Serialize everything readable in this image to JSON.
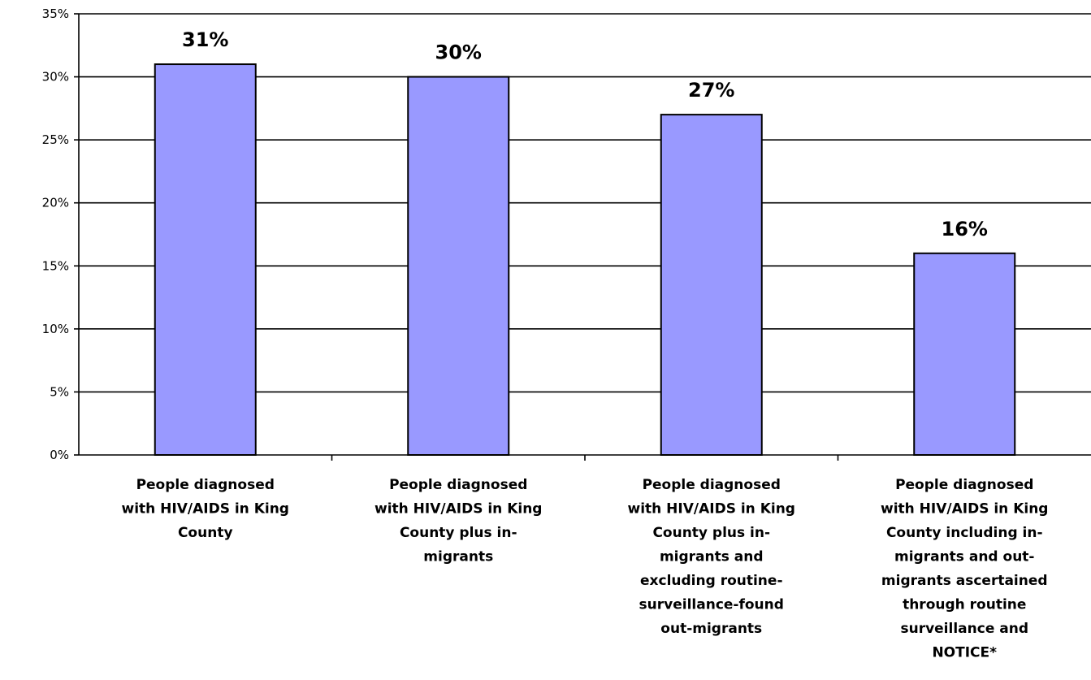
{
  "chart_data": {
    "type": "bar",
    "title": "",
    "xlabel": "",
    "ylabel": "",
    "ylim": [
      0,
      35
    ],
    "yticks": [
      "0%",
      "5%",
      "10%",
      "15%",
      "20%",
      "25%",
      "30%",
      "35%"
    ],
    "grid": true,
    "legend": "none",
    "bar_color": "#9999ff",
    "categories": [
      [
        "People diagnosed",
        "with HIV/AIDS in King",
        "County"
      ],
      [
        "People diagnosed",
        "with HIV/AIDS in King",
        "County plus in-",
        "migrants"
      ],
      [
        "People diagnosed",
        "with HIV/AIDS in King",
        "County plus in-",
        "migrants and",
        "excluding routine-",
        "surveillance-found",
        "out-migrants"
      ],
      [
        "People diagnosed",
        "with HIV/AIDS in King",
        "County including in-",
        "migrants and out-",
        "migrants ascertained",
        "through routine",
        "surveillance and",
        "NOTICE*"
      ]
    ],
    "values": [
      31,
      30,
      27,
      16
    ],
    "data_labels": [
      "31%",
      "30%",
      "27%",
      "16%"
    ]
  }
}
